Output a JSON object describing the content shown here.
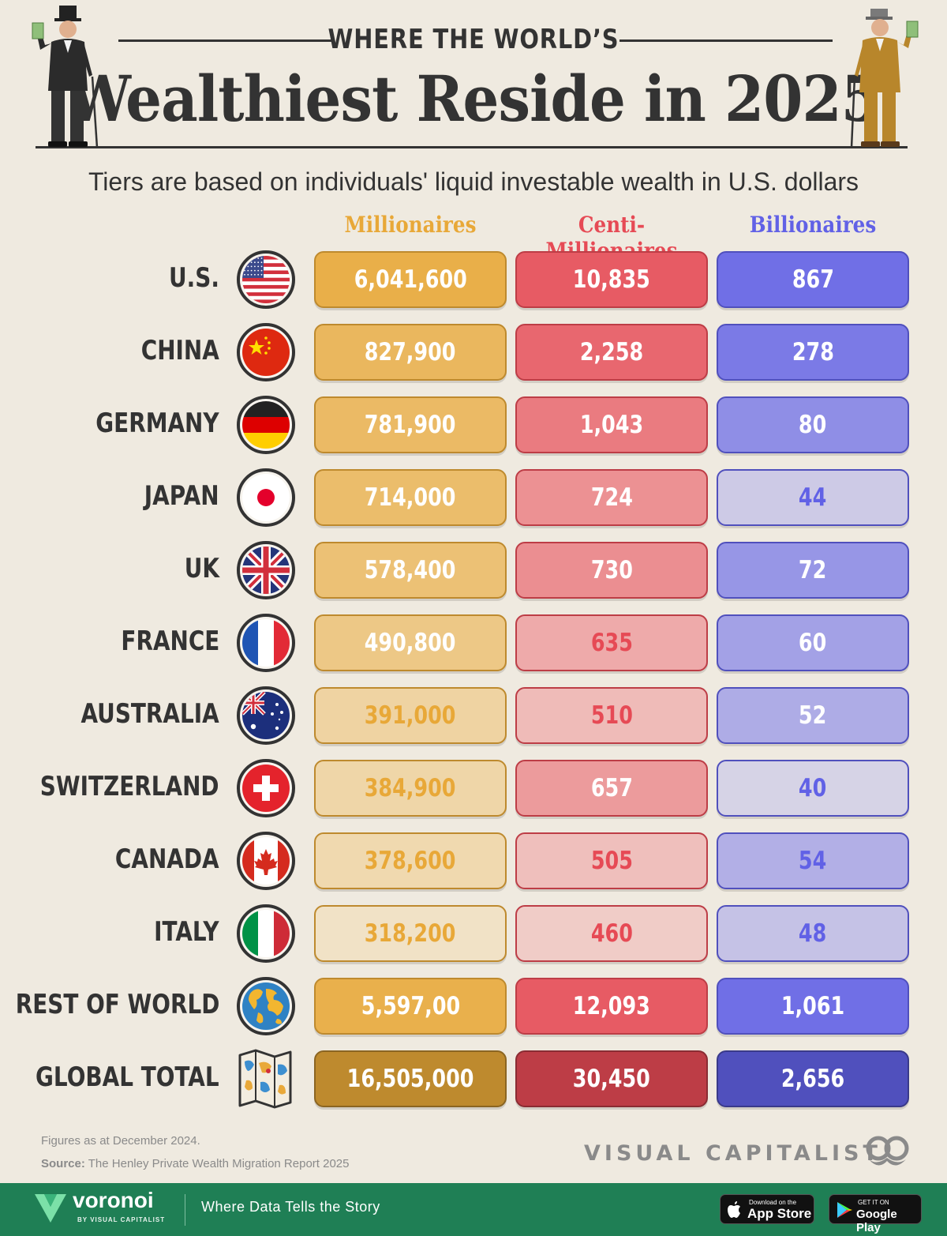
{
  "header": {
    "kicker": "WHERE THE WORLD’S",
    "title": "Wealthiest Reside in 2025",
    "subtitle": "Tiers are based on individuals' liquid investable wealth in U.S. dollars"
  },
  "colors": {
    "background": "#efeae0",
    "millionaires": "#e8a838",
    "centi": "#e64a55",
    "billionaires": "#6161e6",
    "text": "#333333",
    "footer": "#1f7f55"
  },
  "chart_data": {
    "type": "table",
    "title": "Wealthiest Reside in 2025",
    "subtitle": "Tiers are based on individuals' liquid investable wealth in U.S. dollars",
    "columns": [
      "Millionaires",
      "Centi-Millionaires",
      "Billionaires"
    ],
    "rows": [
      {
        "country": "U.S.",
        "flag": "us-flag-icon",
        "values": [
          "6,041,600",
          "10,835",
          "867"
        ],
        "intensity": [
          1.0,
          1.0,
          1.0
        ]
      },
      {
        "country": "CHINA",
        "flag": "china-flag-icon",
        "values": [
          "827,900",
          "2,258",
          "278"
        ],
        "intensity": [
          0.85,
          0.9,
          0.9
        ]
      },
      {
        "country": "GERMANY",
        "flag": "germany-flag-icon",
        "values": [
          "781,900",
          "1,043",
          "80"
        ],
        "intensity": [
          0.8,
          0.75,
          0.72
        ]
      },
      {
        "country": "JAPAN",
        "flag": "japan-flag-icon",
        "values": [
          "714,000",
          "724",
          "44"
        ],
        "intensity": [
          0.75,
          0.58,
          0.18
        ]
      },
      {
        "country": "UK",
        "flag": "uk-flag-icon",
        "values": [
          "578,400",
          "730",
          "72"
        ],
        "intensity": [
          0.68,
          0.6,
          0.65
        ]
      },
      {
        "country": "FRANCE",
        "flag": "france-flag-icon",
        "values": [
          "490,800",
          "635",
          "60"
        ],
        "intensity": [
          0.55,
          0.38,
          0.55
        ]
      },
      {
        "country": "AUSTRALIA",
        "flag": "australia-flag-icon",
        "values": [
          "391,000",
          "510",
          "52"
        ],
        "intensity": [
          0.35,
          0.25,
          0.45
        ]
      },
      {
        "country": "SWITZERLAND",
        "flag": "switzerland-flag-icon",
        "values": [
          "384,900",
          "657",
          "40"
        ],
        "intensity": [
          0.3,
          0.5,
          0.1
        ]
      },
      {
        "country": "CANADA",
        "flag": "canada-flag-icon",
        "values": [
          "378,600",
          "505",
          "54"
        ],
        "intensity": [
          0.25,
          0.22,
          0.42
        ]
      },
      {
        "country": "ITALY",
        "flag": "italy-flag-icon",
        "values": [
          "318,200",
          "460",
          "48"
        ],
        "intensity": [
          0.08,
          0.12,
          0.25
        ]
      },
      {
        "country": "REST OF WORLD",
        "flag": "globe-icon",
        "values": [
          "5,597,00",
          "12,093",
          "1,061"
        ],
        "intensity": [
          0.98,
          1.0,
          1.0
        ]
      },
      {
        "country": "GLOBAL TOTAL",
        "flag": "world-map-icon",
        "values": [
          "16,505,000",
          "30,450",
          "2,656"
        ],
        "intensity": [
          1.2,
          1.2,
          1.2
        ]
      }
    ]
  },
  "footer": {
    "note": "Figures as at December 2024.",
    "source_label": "Source:",
    "source_text": "The Henley Private Wealth Migration Report 2025",
    "brand": "VISUAL CAPITALIST",
    "voronoi": "voronoi",
    "voronoi_by": "BY VISUAL CAPITALIST",
    "tagline": "Where Data Tells the Story",
    "apple_small": "Download on the",
    "apple_big": "App Store",
    "google_small": "GET IT ON",
    "google_big": "Google Play"
  }
}
